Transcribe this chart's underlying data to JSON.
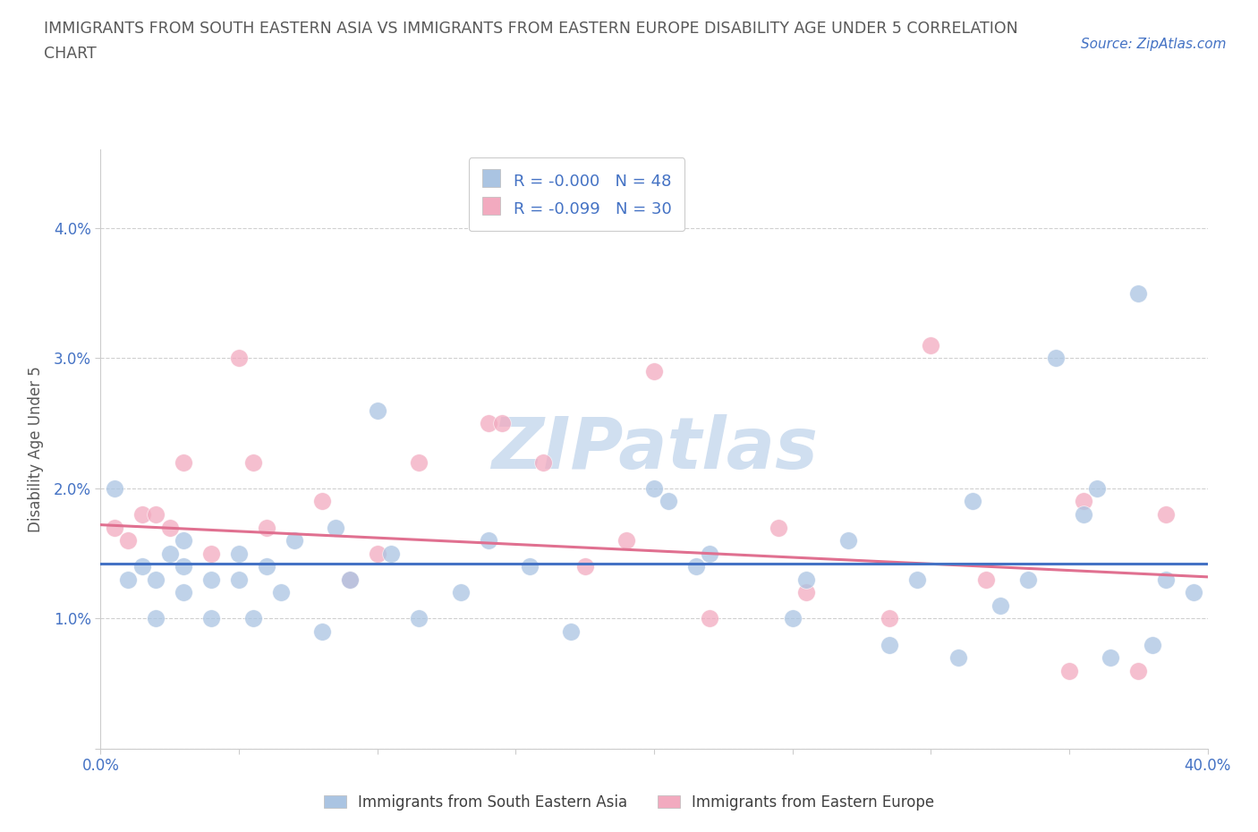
{
  "title_line1": "IMMIGRANTS FROM SOUTH EASTERN ASIA VS IMMIGRANTS FROM EASTERN EUROPE DISABILITY AGE UNDER 5 CORRELATION",
  "title_line2": "CHART",
  "source": "Source: ZipAtlas.com",
  "ylabel": "Disability Age Under 5",
  "xlim": [
    0.0,
    0.4
  ],
  "ylim": [
    0.0,
    0.046
  ],
  "yticks": [
    0.0,
    0.01,
    0.02,
    0.03,
    0.04
  ],
  "ytick_labels": [
    "",
    "1.0%",
    "2.0%",
    "3.0%",
    "4.0%"
  ],
  "xticks": [
    0.0,
    0.05,
    0.1,
    0.15,
    0.2,
    0.25,
    0.3,
    0.35,
    0.4
  ],
  "xtick_labels": [
    "0.0%",
    "",
    "",
    "",
    "",
    "",
    "",
    "",
    "40.0%"
  ],
  "legend_blue_label": "Immigrants from South Eastern Asia",
  "legend_pink_label": "Immigrants from Eastern Europe",
  "r_blue": "-0.000",
  "n_blue": "48",
  "r_pink": "-0.099",
  "n_pink": "30",
  "blue_color": "#aac4e2",
  "pink_color": "#f2aabf",
  "line_blue_color": "#4472c4",
  "line_pink_color": "#e07090",
  "title_color": "#595959",
  "axis_label_color": "#595959",
  "tick_color": "#4472c4",
  "watermark_color": "#d0dff0",
  "grid_color": "#d0d0d0",
  "background_color": "#ffffff",
  "blue_scatter_x": [
    0.005,
    0.01,
    0.015,
    0.02,
    0.02,
    0.025,
    0.03,
    0.03,
    0.03,
    0.04,
    0.04,
    0.05,
    0.05,
    0.055,
    0.06,
    0.065,
    0.07,
    0.08,
    0.085,
    0.09,
    0.1,
    0.105,
    0.115,
    0.13,
    0.14,
    0.155,
    0.17,
    0.2,
    0.205,
    0.215,
    0.22,
    0.25,
    0.255,
    0.27,
    0.285,
    0.295,
    0.31,
    0.315,
    0.325,
    0.335,
    0.345,
    0.355,
    0.36,
    0.365,
    0.375,
    0.38,
    0.385,
    0.395
  ],
  "blue_scatter_y": [
    0.02,
    0.013,
    0.014,
    0.013,
    0.01,
    0.015,
    0.016,
    0.014,
    0.012,
    0.013,
    0.01,
    0.015,
    0.013,
    0.01,
    0.014,
    0.012,
    0.016,
    0.009,
    0.017,
    0.013,
    0.026,
    0.015,
    0.01,
    0.012,
    0.016,
    0.014,
    0.009,
    0.02,
    0.019,
    0.014,
    0.015,
    0.01,
    0.013,
    0.016,
    0.008,
    0.013,
    0.007,
    0.019,
    0.011,
    0.013,
    0.03,
    0.018,
    0.02,
    0.007,
    0.035,
    0.008,
    0.013,
    0.012
  ],
  "pink_scatter_x": [
    0.005,
    0.01,
    0.015,
    0.02,
    0.025,
    0.03,
    0.04,
    0.05,
    0.055,
    0.06,
    0.08,
    0.09,
    0.1,
    0.115,
    0.14,
    0.145,
    0.16,
    0.175,
    0.19,
    0.2,
    0.22,
    0.245,
    0.255,
    0.285,
    0.3,
    0.32,
    0.35,
    0.355,
    0.375,
    0.385
  ],
  "pink_scatter_y": [
    0.017,
    0.016,
    0.018,
    0.018,
    0.017,
    0.022,
    0.015,
    0.03,
    0.022,
    0.017,
    0.019,
    0.013,
    0.015,
    0.022,
    0.025,
    0.025,
    0.022,
    0.014,
    0.016,
    0.029,
    0.01,
    0.017,
    0.012,
    0.01,
    0.031,
    0.013,
    0.006,
    0.019,
    0.006,
    0.018
  ],
  "blue_line_x0": 0.0,
  "blue_line_y0": 0.0142,
  "blue_line_x1": 0.4,
  "blue_line_y1": 0.0142,
  "pink_line_x0": 0.0,
  "pink_line_y0": 0.0172,
  "pink_line_x1": 0.4,
  "pink_line_y1": 0.0132
}
